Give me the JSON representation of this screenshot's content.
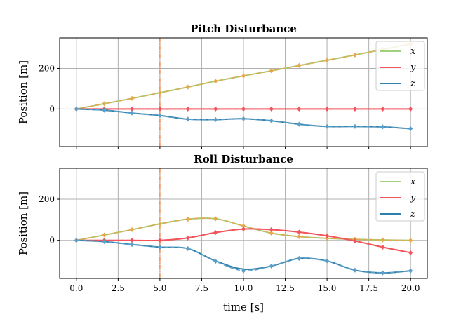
{
  "chart_data": [
    {
      "type": "line",
      "title": "Pitch Disturbance",
      "ylabel": "Position [m]",
      "xlabel": "",
      "xlim": [
        -1,
        21
      ],
      "ylim": [
        -185,
        350
      ],
      "yticks": [
        "0",
        "200"
      ],
      "ytick_values": [
        0,
        200
      ],
      "xticks_visible": false,
      "grid": true,
      "legend": "top-right",
      "disturbance_time": 5.0,
      "series": [
        {
          "name": "x",
          "color": "#a1d17f",
          "dashed_color": "#e3a94a",
          "x": [
            0,
            1.67,
            3.33,
            5,
            6.67,
            8.33,
            10,
            11.67,
            13.33,
            15,
            16.67,
            18.33,
            20
          ],
          "y": [
            0,
            26,
            52,
            80,
            108,
            137,
            163,
            188,
            214,
            240,
            266,
            293,
            320
          ],
          "dashed_y": [
            0,
            26,
            52,
            80,
            108,
            137,
            163,
            188,
            214,
            240,
            266,
            293,
            320
          ]
        },
        {
          "name": "y",
          "color": "#f2545b",
          "dashed_color": "#f2545b",
          "x": [
            0,
            1.67,
            3.33,
            5,
            6.67,
            8.33,
            10,
            11.67,
            13.33,
            15,
            16.67,
            18.33,
            20
          ],
          "y": [
            0,
            0,
            0,
            0,
            0,
            0,
            0,
            0,
            0,
            0,
            0,
            0,
            0
          ],
          "dashed_y": [
            0,
            0,
            0,
            0,
            0,
            0,
            0,
            0,
            0,
            0,
            0,
            0,
            0
          ]
        },
        {
          "name": "z",
          "color": "#2e7faa",
          "dashed_color": "#5b9fc8",
          "x": [
            0,
            1.67,
            3.33,
            5,
            6.67,
            8.33,
            10,
            11.67,
            13.33,
            15,
            16.67,
            18.33,
            20
          ],
          "y": [
            0,
            -6,
            -20,
            -32,
            -50,
            -52,
            -48,
            -58,
            -75,
            -86,
            -86,
            -88,
            -97
          ],
          "dashed_y": [
            0,
            -6,
            -20,
            -32,
            -50,
            -52,
            -48,
            -58,
            -75,
            -86,
            -86,
            -88,
            -97
          ]
        }
      ]
    },
    {
      "type": "line",
      "title": "Roll Disturbance",
      "ylabel": "Position [m]",
      "xlabel": "time [s]",
      "xlim": [
        -1,
        21
      ],
      "ylim": [
        -185,
        350
      ],
      "yticks": [
        "0",
        "200"
      ],
      "ytick_values": [
        0,
        200
      ],
      "xticks": [
        "0.0",
        "2.5",
        "5.0",
        "7.5",
        "10.0",
        "12.5",
        "15.0",
        "17.5",
        "20.0"
      ],
      "xtick_values": [
        0,
        2.5,
        5,
        7.5,
        10,
        12.5,
        15,
        17.5,
        20
      ],
      "grid": true,
      "legend": "top-right",
      "disturbance_time": 5.0,
      "series": [
        {
          "name": "x",
          "color": "#a1d17f",
          "dashed_color": "#e3a94a",
          "x": [
            0,
            1.67,
            3.33,
            5,
            6.67,
            8.33,
            10,
            11.67,
            13.33,
            15,
            16.67,
            18.33,
            20
          ],
          "y": [
            0,
            26,
            52,
            80,
            103,
            105,
            70,
            35,
            18,
            10,
            5,
            2,
            0
          ],
          "dashed_y": [
            0,
            26,
            52,
            80,
            103,
            105,
            70,
            35,
            18,
            10,
            5,
            2,
            0
          ]
        },
        {
          "name": "y",
          "color": "#f2545b",
          "dashed_color": "#f2545b",
          "x": [
            0,
            1.67,
            3.33,
            5,
            6.67,
            8.33,
            10,
            11.67,
            13.33,
            15,
            16.67,
            18.33,
            20
          ],
          "y": [
            0,
            0,
            0,
            0,
            12,
            38,
            55,
            52,
            40,
            22,
            -3,
            -33,
            -60
          ],
          "dashed_y": [
            0,
            0,
            0,
            0,
            12,
            38,
            55,
            52,
            40,
            22,
            -3,
            -33,
            -60
          ]
        },
        {
          "name": "z",
          "color": "#2e7faa",
          "dashed_color": "#5b9fc8",
          "x": [
            0,
            1.67,
            3.33,
            5,
            6.67,
            8.33,
            10,
            11.67,
            13.33,
            15,
            16.67,
            18.33,
            20
          ],
          "y": [
            0,
            -6,
            -20,
            -33,
            -40,
            -100,
            -140,
            -125,
            -88,
            -100,
            -145,
            -158,
            -148
          ],
          "dashed_y": [
            0,
            -6,
            -20,
            -33,
            -40,
            -102,
            -148,
            -125,
            -88,
            -100,
            -145,
            -158,
            -148
          ]
        }
      ]
    }
  ]
}
